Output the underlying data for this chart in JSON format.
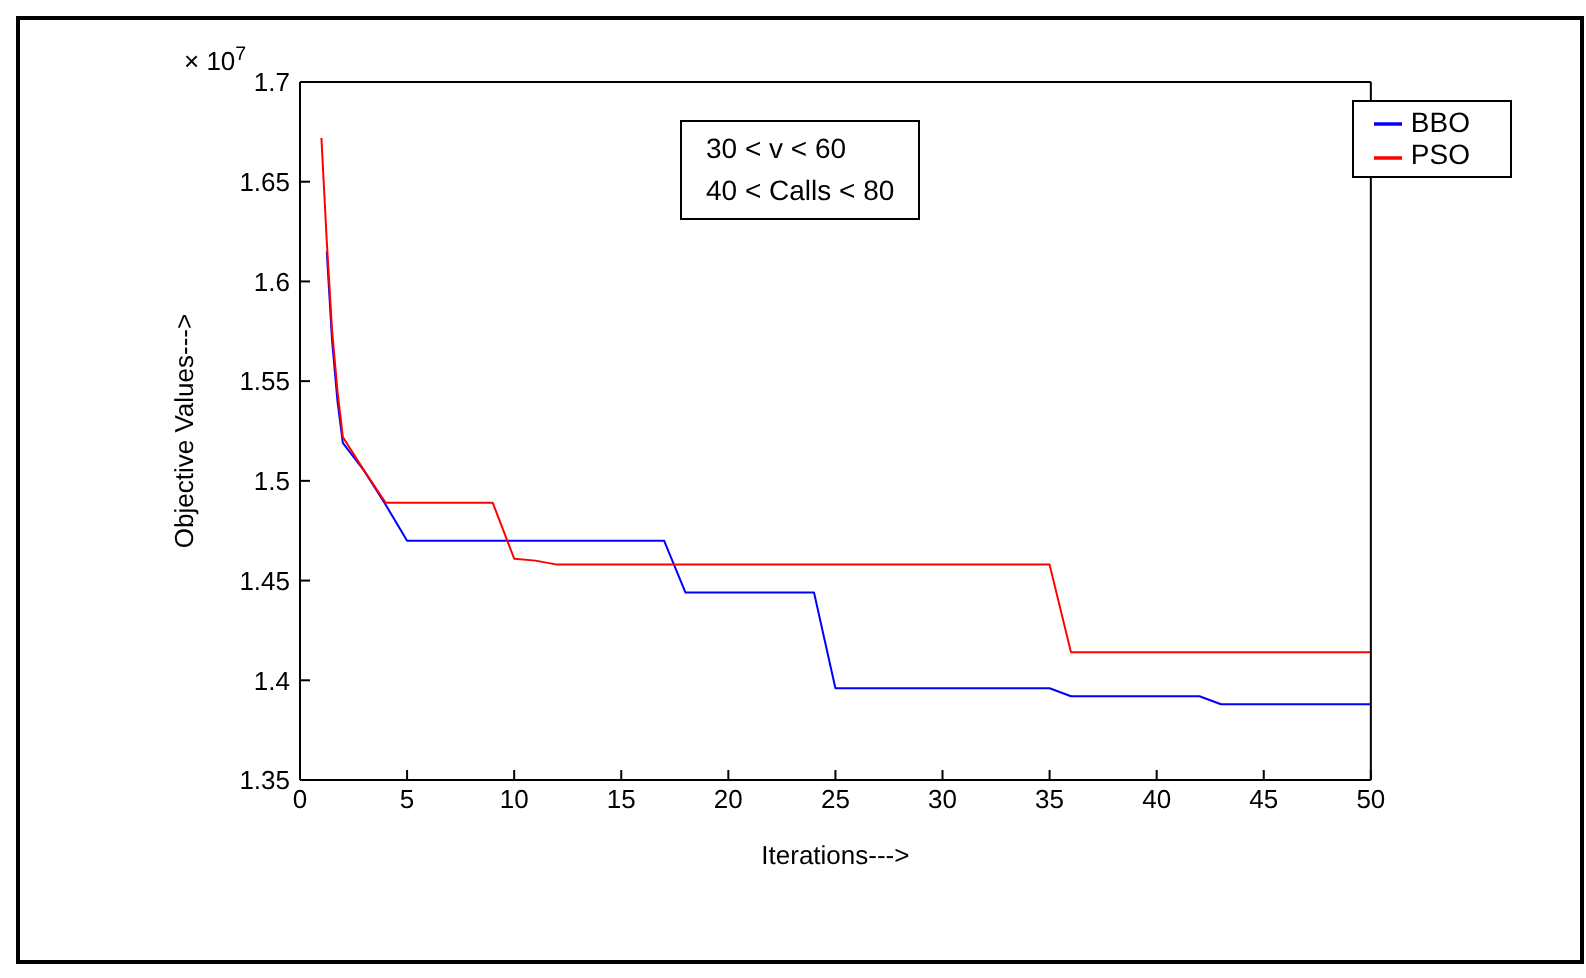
{
  "chart_data": {
    "type": "line",
    "xlabel": "Iterations--->",
    "ylabel": "Objective Values--->",
    "annotations": [
      "× 10$^{7}$",
      "30 < v < 60",
      "40 <  Calls < 80"
    ],
    "xlim": [
      0,
      50
    ],
    "xticks": [
      0,
      5,
      10,
      15,
      20,
      25,
      30,
      35,
      40,
      45,
      50
    ],
    "ylim": [
      1.35,
      1.7
    ],
    "yticks": [
      1.35,
      1.4,
      1.45,
      1.5,
      1.55,
      1.6,
      1.65,
      1.7
    ],
    "grid": false,
    "legend": "top right",
    "marker": "none",
    "line_style": "solid",
    "series": [
      {
        "name": "BBO",
        "color": "#0000ff",
        "x": [
          1.25,
          1.5,
          1.75,
          2,
          3,
          4,
          5,
          17,
          18,
          24,
          25,
          35,
          36,
          42,
          43,
          50
        ],
        "values": [
          1.615,
          1.57,
          1.54,
          1.519,
          1.505,
          1.488,
          1.47,
          1.47,
          1.444,
          1.444,
          1.396,
          1.396,
          1.392,
          1.392,
          1.388,
          1.388
        ]
      },
      {
        "name": "PSO",
        "color": "#ff0000",
        "x": [
          1,
          1.25,
          1.5,
          1.75,
          2,
          3,
          4,
          9,
          10,
          11,
          12,
          35,
          36,
          50
        ],
        "values": [
          1.672,
          1.62,
          1.575,
          1.545,
          1.522,
          1.505,
          1.489,
          1.489,
          1.461,
          1.46,
          1.458,
          1.458,
          1.414,
          1.414
        ]
      }
    ]
  }
}
